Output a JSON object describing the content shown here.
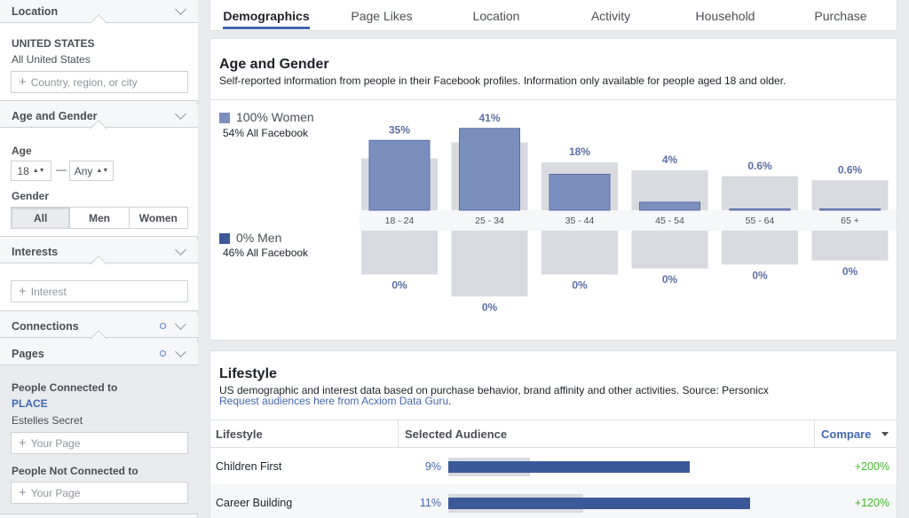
{
  "sidebar": {
    "location": {
      "header": "Location",
      "country": "UNITED STATES",
      "region": "All United States",
      "input_placeholder": "Country, region, or city"
    },
    "age_gender": {
      "header": "Age and Gender",
      "age_label": "Age",
      "age_min": "18",
      "age_sep": "—",
      "age_max": "Any",
      "gender_label": "Gender",
      "gender_options": [
        "All",
        "Men",
        "Women"
      ],
      "gender_selected": "All"
    },
    "interests": {
      "header": "Interests",
      "input_placeholder": "Interest"
    },
    "connections": {
      "header": "Connections"
    },
    "pages": {
      "header": "Pages",
      "connected_label": "People Connected to",
      "place_label": "PLACE",
      "page_name": "Estelles Secret",
      "your_page_placeholder": "Your Page",
      "not_connected_label": "People Not Connected to",
      "your_page_placeholder_2": "Your Page"
    }
  },
  "tabs": [
    "Demographics",
    "Page Likes",
    "Location",
    "Activity",
    "Household",
    "Purchase"
  ],
  "active_tab": "Demographics",
  "age_gender_card": {
    "title": "Age and Gender",
    "subtitle": "Self-reported information from people in their Facebook profiles. Information only available for people aged 18 and older.",
    "women_legend": "100% Women",
    "women_sub": "54% All Facebook",
    "men_legend": "0% Men",
    "men_sub": "46% All Facebook"
  },
  "chart_data": {
    "type": "bar",
    "categories": [
      "18 - 24",
      "25 - 34",
      "35 - 44",
      "45 - 54",
      "55 - 64",
      "65 +"
    ],
    "series": [
      {
        "name": "Women",
        "values": [
          35,
          41,
          18,
          4,
          0.6,
          0.6
        ],
        "labels": [
          "35%",
          "41%",
          "18%",
          "4%",
          "0.6%",
          "0.6%"
        ]
      },
      {
        "name": "Men",
        "values": [
          0,
          0,
          0,
          0,
          0,
          0
        ],
        "labels": [
          "0%",
          "0%",
          "0%",
          "0%",
          "0%",
          "0%"
        ]
      }
    ],
    "baseline_all_facebook_women": [
      26,
      34,
      24,
      20,
      17,
      15
    ],
    "baseline_all_facebook_men": [
      22,
      33,
      22,
      19,
      17,
      15
    ],
    "colors": {
      "women": "#7b8fbe",
      "women_stroke": "#5b6fa7",
      "men": "#3b5998",
      "baseline": "#d8dadf",
      "label": "#5b6fa7"
    }
  },
  "lifestyle_card": {
    "title": "Lifestyle",
    "subtitle": "US demographic and interest data based on purchase behavior, brand affinity and other activities. Source: Personicx",
    "link": "Request audiences here from Acxiom Data Guru",
    "link_end": ".",
    "columns": [
      "Lifestyle",
      "Selected Audience",
      "Compare"
    ],
    "rows": [
      {
        "name": "Children First",
        "pct": "9%",
        "audience": 0.68,
        "baseline": 0.23,
        "compare": "+200%"
      },
      {
        "name": "Career Building",
        "pct": "11%",
        "audience": 0.85,
        "baseline": 0.38,
        "compare": "+120%"
      }
    ]
  }
}
